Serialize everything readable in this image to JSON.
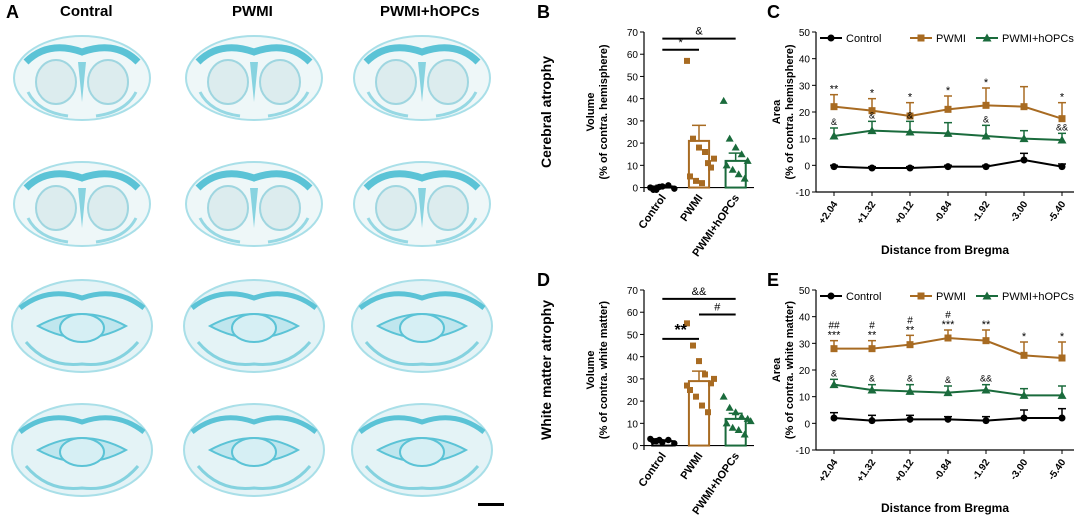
{
  "panel_letters": {
    "a": "A",
    "b": "B",
    "c": "C",
    "d": "D",
    "e": "E"
  },
  "histology": {
    "column_headers": [
      "Contral",
      "PWMI",
      "PWMI+hOPCs"
    ],
    "stain_color": "#5bc3d6",
    "scale_bar": true
  },
  "colors": {
    "control": "#000000",
    "pwmi": "#a86b22",
    "hopcs": "#1a6b3c"
  },
  "chart_data": [
    {
      "id": "B",
      "type": "bar",
      "side_title": "Cerebral atrophy",
      "ylabel_lines": [
        "Volume",
        "(% of contra. hemisphere)"
      ],
      "ylim": [
        -2,
        70
      ],
      "yticks": [
        "0",
        "10",
        "20",
        "30",
        "40",
        "50",
        "60",
        "70"
      ],
      "categories": [
        "Control",
        "PWMI",
        "PWMI+hOPCs"
      ],
      "values": [
        0.5,
        21,
        12
      ],
      "errors": [
        0.5,
        7,
        3.5
      ],
      "points": [
        [
          0,
          -1,
          0.5,
          1,
          -0.5,
          -1,
          0.3
        ],
        [
          57,
          22,
          18,
          16,
          9,
          5,
          3,
          2,
          11,
          13
        ],
        [
          39,
          22,
          18,
          15,
          12,
          10,
          8,
          6,
          4
        ]
      ],
      "annotations": [
        {
          "text": "*",
          "from": 0,
          "to": 1,
          "y": 62,
          "bold": false
        },
        {
          "text": "&",
          "from": 0,
          "to": 2,
          "y": 67,
          "bold": false
        }
      ]
    },
    {
      "id": "D",
      "type": "bar",
      "side_title": "White matter atrophy",
      "ylabel_lines": [
        "Volume",
        "(% of contra. white matter)"
      ],
      "ylim": [
        -2,
        70
      ],
      "yticks": [
        "0",
        "10",
        "20",
        "30",
        "40",
        "50",
        "60",
        "70"
      ],
      "categories": [
        "Control",
        "PWMI",
        "PWMI+hOPCs"
      ],
      "values": [
        2,
        29,
        12
      ],
      "errors": [
        0.5,
        4.5,
        2.5
      ],
      "points": [
        [
          3,
          2,
          1.5,
          2.5,
          1,
          2,
          2.5
        ],
        [
          55,
          45,
          38,
          32,
          28,
          25,
          22,
          18,
          15,
          30,
          27
        ],
        [
          22,
          17,
          15,
          13,
          12,
          10,
          8,
          7,
          5,
          11
        ]
      ],
      "annotations": [
        {
          "text": "**",
          "from": 0,
          "to": 1,
          "y": 48,
          "bold": true
        },
        {
          "text": "#",
          "from": 1,
          "to": 2,
          "y": 59,
          "bold": false
        },
        {
          "text": "&&",
          "from": 0,
          "to": 2,
          "y": 66,
          "bold": false
        }
      ]
    },
    {
      "id": "C",
      "type": "line",
      "ylabel_lines": [
        "Area",
        "(% of contra. hemisphere)"
      ],
      "xlabel": "Distance from Bregma",
      "x": [
        "+2.04",
        "+1.32",
        "+0.12",
        "-0.84",
        "-1.92",
        "-3.00",
        "-5.40"
      ],
      "ylim": [
        -10,
        50
      ],
      "yticks": [
        "-10",
        "0",
        "10",
        "20",
        "30",
        "40",
        "50"
      ],
      "legend": [
        "Control",
        "PWMI",
        "PWMI+hOPCs"
      ],
      "series": [
        {
          "name": "Control",
          "values": [
            -0.5,
            -1,
            -1,
            -0.5,
            -0.5,
            2,
            -0.5
          ],
          "errors": [
            0.5,
            0.5,
            0.5,
            0.5,
            0.5,
            2.5,
            1
          ]
        },
        {
          "name": "PWMI",
          "values": [
            22,
            20.5,
            18.5,
            21,
            22.5,
            22,
            17.5
          ],
          "errors": [
            4.5,
            4.5,
            5,
            5,
            6.5,
            7.5,
            6
          ]
        },
        {
          "name": "PWMI+hOPCs",
          "values": [
            11,
            13,
            12.5,
            12,
            11,
            10,
            9.5
          ],
          "errors": [
            3,
            3.5,
            4,
            4,
            4,
            3,
            2.5
          ]
        }
      ],
      "annotations_pwmi": [
        "**",
        "*",
        "*",
        "*",
        "*",
        "",
        "*"
      ],
      "annotations_hopcs": [
        "&",
        "&",
        "&",
        "",
        "&",
        "",
        "&&"
      ]
    },
    {
      "id": "E",
      "type": "line",
      "ylabel_lines": [
        "Area",
        "(% of contra. white matter)"
      ],
      "xlabel": "Distance from Bregma",
      "x": [
        "+2.04",
        "+1.32",
        "+0.12",
        "-0.84",
        "-1.92",
        "-3.00",
        "-5.40"
      ],
      "ylim": [
        -10,
        50
      ],
      "yticks": [
        "-10",
        "0",
        "10",
        "20",
        "30",
        "40",
        "50"
      ],
      "legend": [
        "Control",
        "PWMI",
        "PWMI+hOPCs"
      ],
      "series": [
        {
          "name": "Control",
          "values": [
            2,
            1,
            1.5,
            1.5,
            1,
            2,
            2
          ],
          "errors": [
            2,
            2,
            1.5,
            1,
            1.5,
            3,
            3.5
          ]
        },
        {
          "name": "PWMI",
          "values": [
            28,
            28,
            29.5,
            32,
            31,
            25.5,
            24.5
          ],
          "errors": [
            3,
            3,
            3.5,
            3,
            4,
            5,
            6
          ]
        },
        {
          "name": "PWMI+hOPCs",
          "values": [
            14.5,
            12.5,
            12,
            11.5,
            12.5,
            10.5,
            10.5
          ],
          "errors": [
            2,
            2,
            2.5,
            2.5,
            2,
            2.5,
            3.5
          ]
        }
      ],
      "annotations_pwmi": [
        "***",
        "**",
        "**",
        "***",
        "**",
        "*",
        "*"
      ],
      "annotations_hash": [
        "##",
        "#",
        "#",
        "#",
        "",
        "",
        ""
      ],
      "annotations_hopcs": [
        "&",
        "&",
        "&",
        "&",
        "&&",
        "",
        ""
      ]
    }
  ]
}
